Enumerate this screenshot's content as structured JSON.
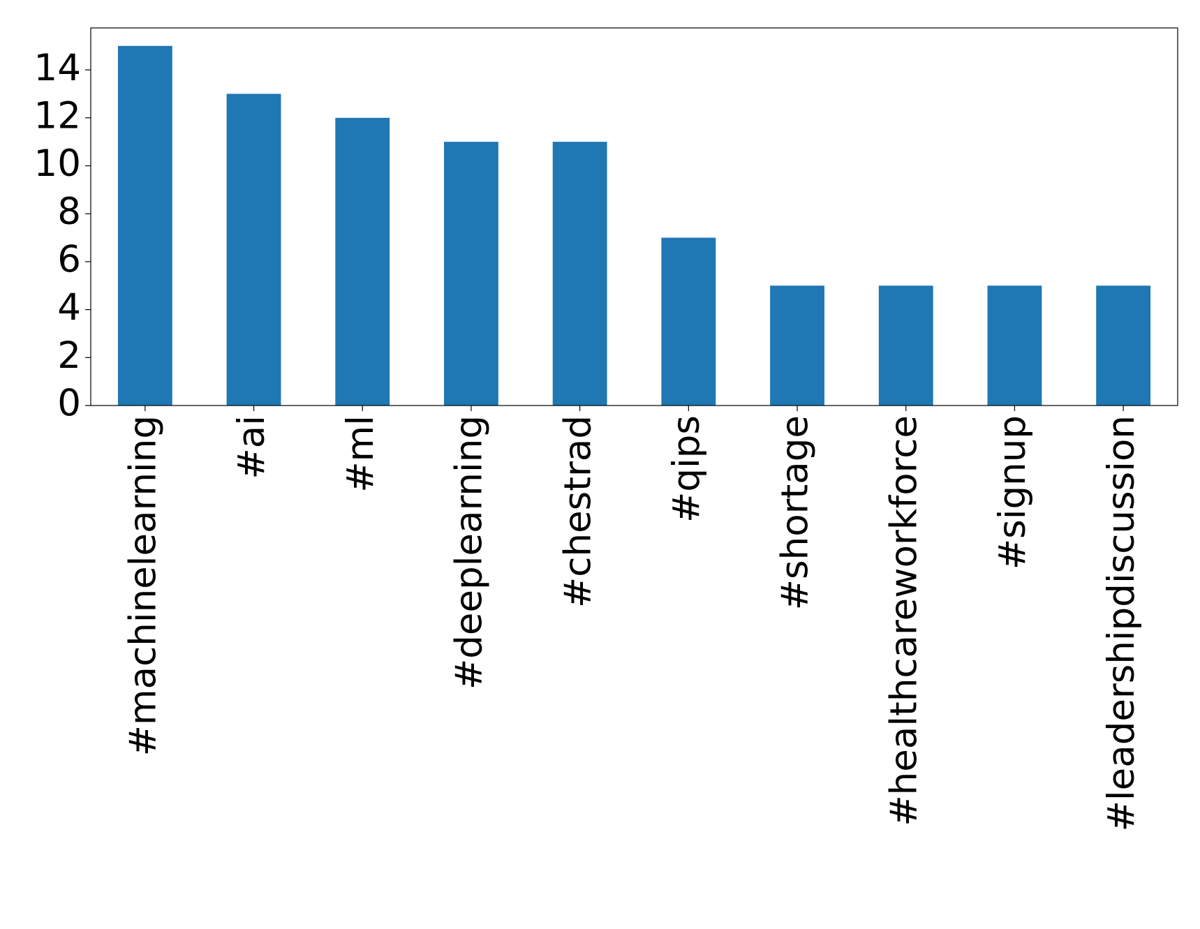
{
  "chart_data": {
    "type": "bar",
    "categories": [
      "#machinelearning",
      "#ai",
      "#ml",
      "#deeplearning",
      "#chestrad",
      "#qips",
      "#shortage",
      "#healthcareworkforce",
      "#signup",
      "#leadershipdiscussion"
    ],
    "values": [
      15,
      13,
      12,
      11,
      11,
      7,
      5,
      5,
      5,
      5
    ],
    "color": "#1f77b4",
    "ylim": [
      0,
      15.75
    ],
    "yticks": [
      0,
      2,
      4,
      6,
      8,
      10,
      12,
      14
    ],
    "grid": false
  }
}
